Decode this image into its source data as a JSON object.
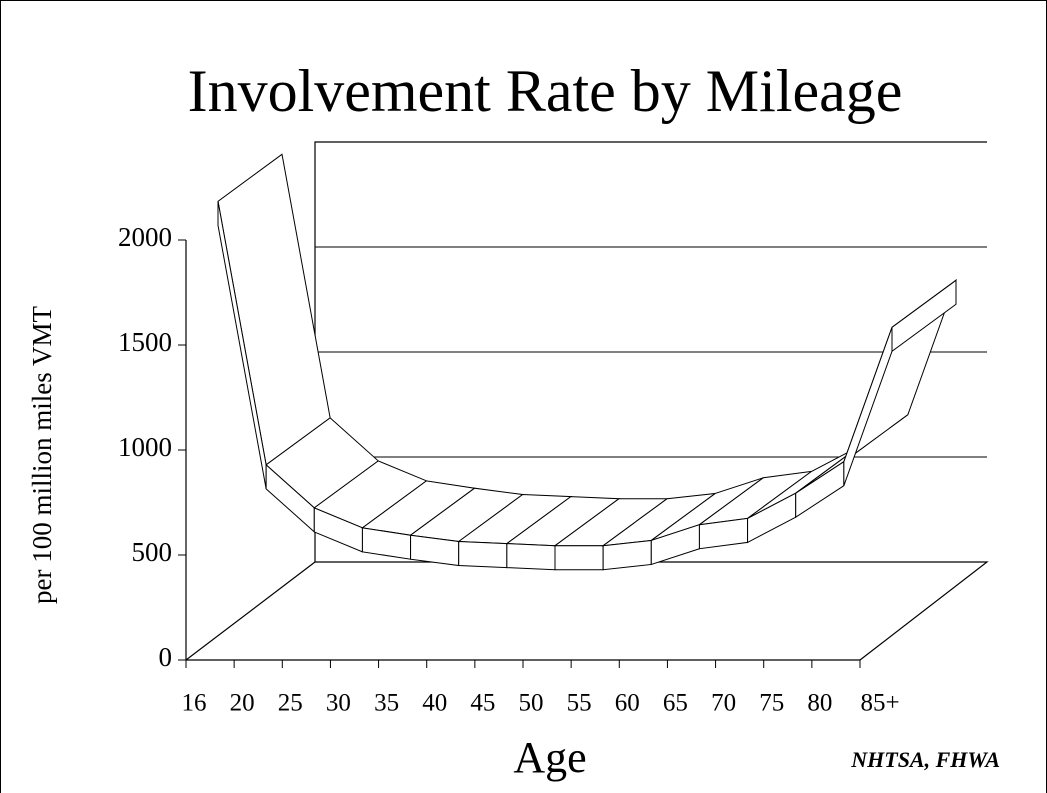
{
  "chart_data": {
    "type": "line3d",
    "title": "Involvement Rate by Mileage",
    "y_label": "per 100 million miles VMT",
    "x_label": "Age",
    "source": "NHTSA, FHWA",
    "categories": [
      "16",
      "20",
      "25",
      "30",
      "35",
      "40",
      "45",
      "50",
      "55",
      "60",
      "65",
      "70",
      "75",
      "80",
      "85+"
    ],
    "values": [
      2070,
      815,
      610,
      515,
      480,
      450,
      440,
      430,
      430,
      455,
      530,
      560,
      680,
      830,
      1470
    ],
    "color": "#ffffff",
    "ylim": [
      0,
      2000
    ],
    "yticks": [
      0,
      500,
      1000,
      1500,
      2000
    ],
    "grid": true
  }
}
